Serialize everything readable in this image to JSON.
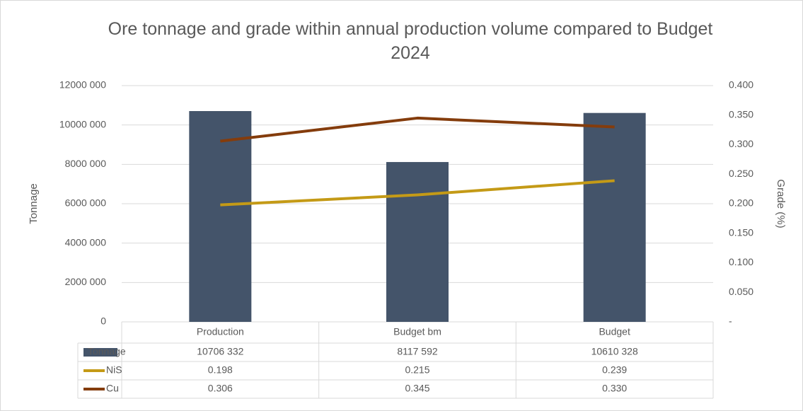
{
  "chart_data": {
    "type": "bar",
    "title": "Ore tonnage and grade within annual production volume compared to Budget 2024",
    "y_label": "Tonnage",
    "y2_label": "Grade (%)",
    "categories": [
      "Production",
      "Budget bm",
      "Budget"
    ],
    "series": [
      {
        "name": "Tonnage",
        "type": "bar",
        "color": "#44546a",
        "values": [
          10706332,
          8117592,
          10610328
        ],
        "value_labels": [
          "10706 332",
          "8117 592",
          "10610 328"
        ]
      },
      {
        "name": "NiS",
        "type": "line",
        "axis": "y2",
        "color": "#c49a16",
        "values": [
          0.198,
          0.215,
          0.239
        ],
        "value_labels": [
          "0.198",
          "0.215",
          "0.239"
        ]
      },
      {
        "name": "Cu",
        "type": "line",
        "axis": "y2",
        "color": "#843c0c",
        "values": [
          0.306,
          0.345,
          0.33
        ],
        "value_labels": [
          "0.306",
          "0.345",
          "0.330"
        ]
      }
    ],
    "ylim": [
      0,
      12000000
    ],
    "yticks": [
      0,
      {
        "value": 2000000,
        "label": "2000 000"
      },
      {
        "value": 4000000,
        "label": "4000 000"
      },
      {
        "value": 6000000,
        "label": "6000 000"
      },
      {
        "value": 8000000,
        "label": "8000 000"
      },
      {
        "value": 10000000,
        "label": "10000 000"
      },
      {
        "value": 12000000,
        "label": "12000 000"
      }
    ],
    "y2lim": [
      0,
      0.4
    ],
    "y2ticks": [
      {
        "value": 0,
        "label": "-"
      },
      {
        "value": 0.05,
        "label": "0.050"
      },
      {
        "value": 0.1,
        "label": "0.100"
      },
      {
        "value": 0.15,
        "label": "0.150"
      },
      {
        "value": 0.2,
        "label": "0.200"
      },
      {
        "value": 0.25,
        "label": "0.250"
      },
      {
        "value": 0.3,
        "label": "0.300"
      },
      {
        "value": 0.35,
        "label": "0.350"
      },
      {
        "value": 0.4,
        "label": "0.400"
      }
    ],
    "grid": true
  }
}
